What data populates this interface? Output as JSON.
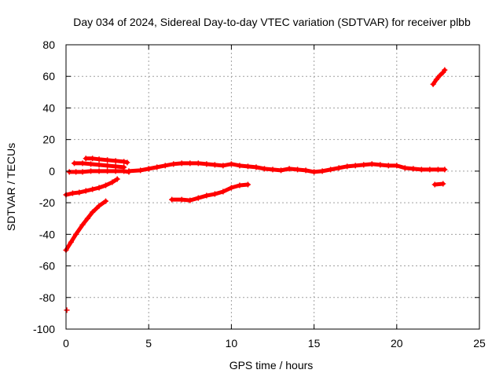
{
  "chart_data": {
    "type": "scatter",
    "title": "Day 034 of 2024, Sidereal Day-to-day VTEC variation (SDTVAR) for receiver plbb",
    "xlabel": "GPS time / hours",
    "ylabel": "SDTVAR / TECUs",
    "xlim": [
      0,
      25
    ],
    "ylim": [
      -100,
      80
    ],
    "xticks": [
      "0",
      "5",
      "10",
      "15",
      "20",
      "25"
    ],
    "yticks": [
      "80",
      "60",
      "40",
      "20",
      "0",
      "-20",
      "-40",
      "-60",
      "-80",
      "-100"
    ],
    "grid": true,
    "marker_color": "#ff0000",
    "series": [
      {
        "x": [
          0.0,
          0.3,
          0.6,
          1.0,
          1.3,
          1.6,
          2.0,
          2.4
        ],
        "y": [
          -50,
          -45,
          -40,
          -34,
          -30,
          -26,
          -22,
          -19
        ]
      },
      {
        "x": [
          0.0,
          0.4,
          0.8,
          1.2,
          1.6,
          2.0,
          2.4,
          2.8,
          3.1
        ],
        "y": [
          -15,
          -14,
          -13.5,
          -12.5,
          -11.5,
          -10.5,
          -9,
          -7,
          -5
        ]
      },
      {
        "x": [
          0.2,
          0.6,
          1.0,
          1.5,
          2.0,
          2.5,
          3.0,
          3.5,
          3.8
        ],
        "y": [
          -0.5,
          -0.5,
          -0.5,
          0,
          0,
          0,
          0,
          0,
          -0.5
        ]
      },
      {
        "x": [
          0.5,
          1.0,
          1.5,
          2.0,
          2.5,
          3.0,
          3.5
        ],
        "y": [
          5,
          5,
          4.5,
          4,
          3.5,
          3,
          2.5
        ]
      },
      {
        "x": [
          1.2,
          1.6,
          2.0,
          2.5,
          3.0,
          3.5,
          3.7
        ],
        "y": [
          8,
          8,
          7.5,
          7,
          6.5,
          6,
          5.5
        ]
      },
      {
        "x": [
          3.8,
          4.5,
          5.0,
          5.5,
          6.0,
          6.5,
          7.0,
          7.5,
          8.0,
          8.5,
          9.0,
          9.5,
          10.0,
          10.5,
          11.0,
          11.5,
          12.0,
          12.5,
          13.0,
          13.5,
          14.0,
          14.5,
          15.0,
          15.5,
          16.0,
          16.5,
          17.0,
          17.5,
          18.0,
          18.5,
          19.0,
          19.5,
          20.0,
          20.5,
          21.0,
          21.5,
          22.0,
          22.5,
          22.9
        ],
        "y": [
          0,
          0.5,
          1.5,
          2.5,
          3.5,
          4.5,
          5,
          5,
          5,
          4.5,
          4,
          3.5,
          4.5,
          3.5,
          3,
          2.5,
          1.5,
          1,
          0.5,
          1.5,
          1,
          0.5,
          -0.5,
          0,
          1,
          2,
          3,
          3.5,
          4,
          4.5,
          4,
          3.5,
          3.5,
          2,
          1.5,
          1,
          1,
          1,
          1
        ]
      },
      {
        "x": [
          6.4,
          7.0,
          7.5,
          8.0,
          8.5,
          9.0,
          9.5,
          10.0,
          10.5,
          11.0
        ],
        "y": [
          -18,
          -18,
          -18.5,
          -17,
          -15.5,
          -14.5,
          -13,
          -10.5,
          -9,
          -8.5
        ]
      },
      {
        "x": [
          22.3,
          22.8
        ],
        "y": [
          -8.5,
          -8
        ]
      },
      {
        "x": [
          22.2,
          22.4,
          22.6,
          22.8,
          22.9
        ],
        "y": [
          55,
          58,
          60.5,
          62.5,
          64
        ]
      },
      {
        "x": [
          0.05
        ],
        "y": [
          -88
        ]
      }
    ]
  }
}
